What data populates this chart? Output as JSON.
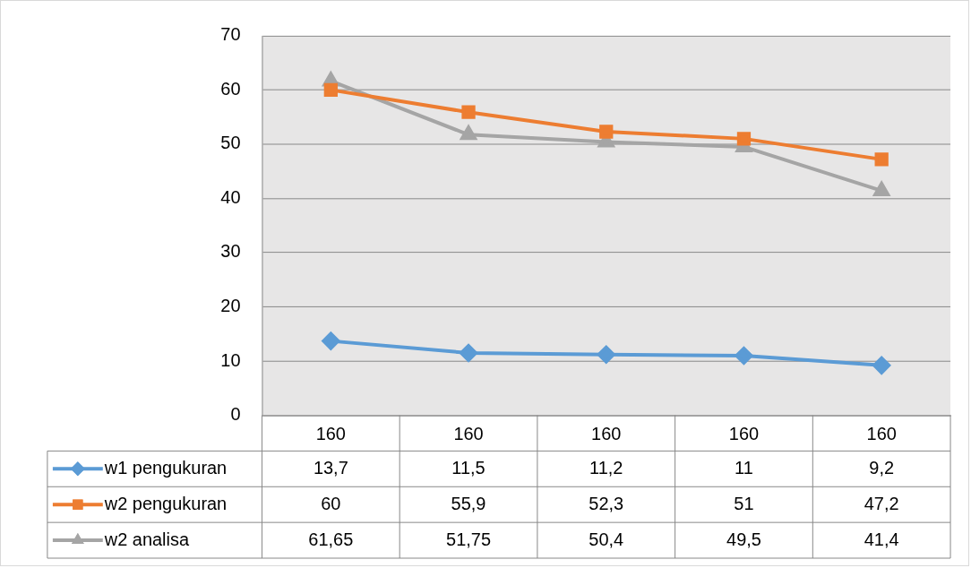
{
  "chart_data": {
    "type": "line",
    "categories": [
      "160",
      "160",
      "160",
      "160",
      "160"
    ],
    "series": [
      {
        "name": "w1 pengukuran",
        "color": "#5b9bd5",
        "marker": "diamond",
        "values": [
          13.7,
          11.5,
          11.2,
          11,
          9.2
        ],
        "value_labels": [
          "13,7",
          "11,5",
          "11,2",
          "11",
          "9,2"
        ]
      },
      {
        "name": "w2 pengukuran",
        "color": "#ed7d31",
        "marker": "square",
        "values": [
          60,
          55.9,
          52.3,
          51,
          47.2
        ],
        "value_labels": [
          "60",
          "55,9",
          "52,3",
          "51",
          "47,2"
        ]
      },
      {
        "name": "w2 analisa",
        "color": "#a5a5a5",
        "marker": "triangle",
        "values": [
          61.65,
          51.75,
          50.4,
          49.5,
          41.4
        ],
        "value_labels": [
          "61,65",
          "51,75",
          "50,4",
          "49,5",
          "41,4"
        ]
      }
    ],
    "ylim": [
      0,
      70
    ],
    "yticks": [
      0,
      10,
      20,
      30,
      40,
      50,
      60,
      70
    ],
    "grid": "y",
    "legend": "bottom"
  }
}
